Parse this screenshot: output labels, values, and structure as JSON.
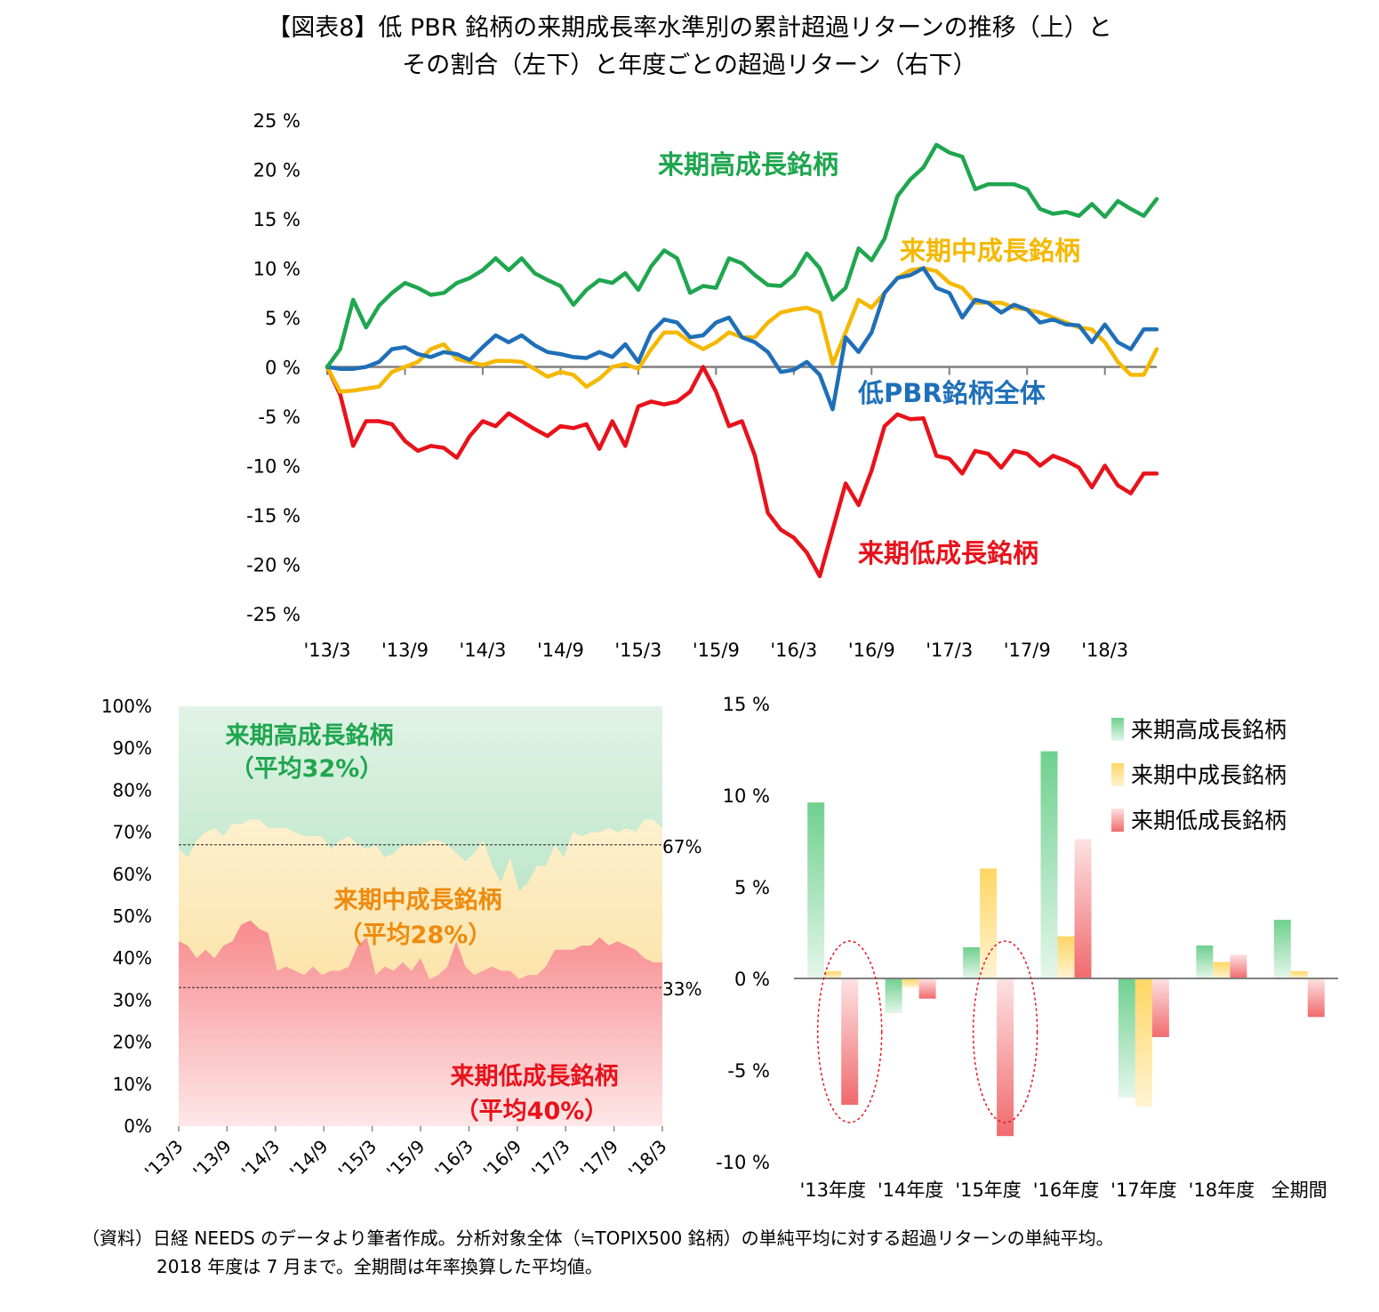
{
  "title_line1": "【図表8】低 PBR 銘柄の来期成長率水準別の累計超過リターンの推移（上）と",
  "title_line2": "その割合（左下）と年度ごとの超過リターン（右下）",
  "note_line1": "（資料）日経 NEEDS のデータより筆者作成。分析対象全体（≒TOPIX500 銘柄）の単純平均に対する超過リターンの単純平均。",
  "note_line2": "2018 年度は 7 月まで。全期間は年率換算した平均値。",
  "colors": {
    "high": "#1fa64f",
    "mid": "#f5b800",
    "low": "#e8121b",
    "all": "#1f6fb8"
  },
  "chart_data": [
    {
      "type": "line",
      "x_tick_labels": [
        "'13/3",
        "'13/9",
        "'14/3",
        "'14/9",
        "'15/3",
        "'15/9",
        "'16/3",
        "'16/9",
        "'17/3",
        "'17/9",
        "'18/3"
      ],
      "y_tick_labels": [
        "25 %",
        "20 %",
        "15 %",
        "10 %",
        "5 %",
        "0 %",
        "-5 %",
        "-10 %",
        "-15 %",
        "-20 %",
        "-25 %"
      ],
      "ylim": [
        -25,
        25
      ],
      "x_start": "2013-03",
      "series": [
        {
          "name": "来期高成長銘柄",
          "color_key": "high",
          "values": [
            0,
            1.8,
            6.8,
            4.0,
            6.2,
            7.5,
            8.5,
            8.0,
            7.3,
            7.5,
            8.5,
            9.0,
            9.8,
            11.0,
            9.8,
            11.0,
            9.5,
            8.8,
            8.2,
            6.3,
            7.8,
            8.8,
            8.5,
            9.5,
            7.8,
            10.2,
            11.8,
            11.0,
            7.5,
            8.2,
            8.0,
            11.0,
            10.5,
            9.3,
            8.3,
            8.2,
            9.3,
            11.5,
            10.0,
            6.8,
            8.0,
            12.0,
            10.8,
            13.0,
            17.3,
            19.0,
            20.2,
            22.5,
            21.7,
            21.3,
            18.0,
            18.5,
            18.5,
            18.5,
            18.0,
            16.0,
            15.5,
            15.7,
            15.3,
            16.5,
            15.2,
            16.8,
            16.0,
            15.3,
            17.0
          ]
        },
        {
          "name": "来期中成長銘柄",
          "color_key": "mid",
          "values": [
            0,
            -2.5,
            -2.4,
            -2.2,
            -2.0,
            -0.5,
            0.0,
            0.5,
            1.8,
            2.3,
            0.8,
            0.5,
            0.2,
            0.6,
            0.6,
            0.5,
            -0.2,
            -1.0,
            -0.5,
            -0.8,
            -2.0,
            -1.2,
            0.0,
            0.3,
            -0.2,
            1.8,
            3.5,
            3.5,
            2.5,
            1.8,
            2.5,
            3.5,
            3.0,
            3.0,
            4.5,
            5.5,
            5.8,
            6.0,
            5.5,
            0.3,
            3.5,
            6.8,
            6.0,
            7.5,
            9.0,
            9.8,
            10.0,
            9.7,
            8.5,
            8.0,
            6.5,
            6.5,
            6.5,
            6.0,
            5.8,
            5.5,
            5.0,
            4.5,
            4.0,
            3.8,
            2.5,
            0.5,
            -0.8,
            -0.8,
            1.8
          ]
        },
        {
          "name": "来期低成長銘柄",
          "color_key": "low",
          "values": [
            0,
            -2.8,
            -8.0,
            -5.5,
            -5.5,
            -5.8,
            -7.5,
            -8.5,
            -8.0,
            -8.2,
            -9.2,
            -7.0,
            -5.5,
            -6.0,
            -4.7,
            -5.5,
            -6.3,
            -7.0,
            -6.0,
            -6.2,
            -5.8,
            -8.3,
            -5.5,
            -8.0,
            -4.0,
            -3.5,
            -3.8,
            -3.5,
            -2.5,
            0.0,
            -2.5,
            -6.0,
            -5.5,
            -9.0,
            -14.8,
            -16.5,
            -17.3,
            -18.8,
            -21.2,
            -16.5,
            -11.8,
            -14.0,
            -10.5,
            -6.0,
            -4.8,
            -5.3,
            -5.2,
            -9.0,
            -9.3,
            -10.8,
            -8.5,
            -8.8,
            -10.2,
            -8.5,
            -8.8,
            -10.0,
            -9.0,
            -9.5,
            -10.2,
            -12.2,
            -10.0,
            -12.0,
            -12.8,
            -10.8,
            -10.8
          ]
        },
        {
          "name": "低PBR銘柄全体",
          "color_key": "all",
          "values": [
            0,
            -0.2,
            -0.2,
            0.0,
            0.5,
            1.8,
            2.0,
            1.3,
            1.0,
            1.5,
            1.3,
            0.7,
            2.0,
            3.2,
            2.5,
            3.2,
            2.2,
            1.5,
            1.3,
            1.0,
            0.9,
            1.5,
            1.0,
            2.3,
            0.5,
            3.5,
            4.8,
            4.5,
            3.0,
            3.2,
            4.5,
            5.0,
            3.0,
            2.5,
            1.5,
            -0.5,
            -0.3,
            0.5,
            -0.8,
            -4.3,
            3.0,
            1.5,
            3.5,
            7.5,
            9.0,
            9.3,
            10.0,
            8.0,
            7.5,
            5.0,
            6.8,
            6.5,
            5.5,
            6.3,
            5.8,
            4.5,
            4.8,
            4.3,
            4.2,
            2.5,
            4.3,
            2.5,
            1.8,
            3.8,
            3.8
          ]
        }
      ],
      "labels": {
        "high": "来期高成長銘柄",
        "mid": "来期中成長銘柄",
        "all": "低PBR銘柄全体",
        "low": "来期低成長銘柄"
      }
    },
    {
      "type": "area",
      "stacked": true,
      "x_tick_labels": [
        "'13/3",
        "'13/9",
        "'14/3",
        "'14/9",
        "'15/3",
        "'15/9",
        "'16/3",
        "'16/9",
        "'17/3",
        "'17/9",
        "'18/3"
      ],
      "y_tick_labels": [
        "100%",
        "90%",
        "80%",
        "70%",
        "60%",
        "50%",
        "40%",
        "30%",
        "20%",
        "10%",
        "0%"
      ],
      "ylim": [
        0,
        100
      ],
      "reference_lines": [
        {
          "value": 67,
          "label": "67%"
        },
        {
          "value": 33,
          "label": "33%"
        }
      ],
      "series": [
        {
          "name": "来期低成長銘柄",
          "avg_label": "（平均40%）",
          "color_key": "low",
          "values": [
            44,
            43,
            40,
            42,
            40,
            43,
            44,
            48,
            49,
            47,
            46,
            37,
            38,
            37,
            36,
            38,
            36,
            37,
            37,
            38,
            43,
            45,
            36,
            38,
            37,
            39,
            37,
            40,
            35,
            36,
            38,
            44,
            38,
            36,
            37,
            38,
            37,
            37,
            35,
            36,
            36,
            38,
            42,
            42,
            42,
            43,
            43,
            45,
            43,
            44,
            43,
            42,
            40,
            39,
            39
          ]
        },
        {
          "name": "来期中成長銘柄",
          "avg_label": "（平均28%）",
          "color_key": "mid",
          "values": [
            22,
            21,
            28,
            28,
            31,
            26,
            28,
            24,
            24,
            26,
            25,
            34,
            33,
            33,
            33,
            31,
            33,
            29,
            31,
            31,
            24,
            21,
            31,
            26,
            28,
            28,
            30,
            27,
            33,
            32,
            29,
            21,
            25,
            29,
            31,
            24,
            21,
            27,
            21,
            22,
            26,
            24,
            25,
            22,
            28,
            26,
            27,
            25,
            28,
            26,
            28,
            28,
            33,
            34,
            32
          ]
        },
        {
          "name": "来期高成長銘柄",
          "avg_label": "（平均32%）",
          "color_key": "high",
          "values": [
            34,
            36,
            32,
            30,
            29,
            31,
            28,
            28,
            27,
            27,
            29,
            29,
            29,
            30,
            31,
            31,
            31,
            34,
            32,
            31,
            33,
            34,
            33,
            36,
            35,
            33,
            33,
            33,
            32,
            32,
            33,
            35,
            37,
            35,
            32,
            38,
            42,
            36,
            44,
            42,
            38,
            38,
            33,
            36,
            30,
            31,
            30,
            30,
            29,
            30,
            29,
            30,
            27,
            27,
            29
          ]
        }
      ]
    },
    {
      "type": "bar",
      "categories": [
        "'13年度",
        "'14年度",
        "'15年度",
        "'16年度",
        "'17年度",
        "'18年度",
        "全期間"
      ],
      "y_tick_labels": [
        "15 %",
        "10 %",
        "5 %",
        "0 %",
        "-5 %",
        "-10 %"
      ],
      "ylim": [
        -10,
        15
      ],
      "series": [
        {
          "name": "来期高成長銘柄",
          "color_key": "high",
          "values": [
            9.6,
            -1.9,
            1.7,
            12.4,
            -6.5,
            1.8,
            3.2
          ]
        },
        {
          "name": "来期中成長銘柄",
          "color_key": "mid",
          "values": [
            0.4,
            -0.5,
            6.0,
            2.3,
            -7.0,
            0.9,
            0.4
          ]
        },
        {
          "name": "来期低成長銘柄",
          "color_key": "low",
          "values": [
            -6.9,
            -1.1,
            -8.6,
            7.6,
            -3.2,
            1.3,
            -2.1
          ]
        }
      ],
      "highlighted_categories": [
        "'13年度",
        "'15年度"
      ]
    }
  ]
}
